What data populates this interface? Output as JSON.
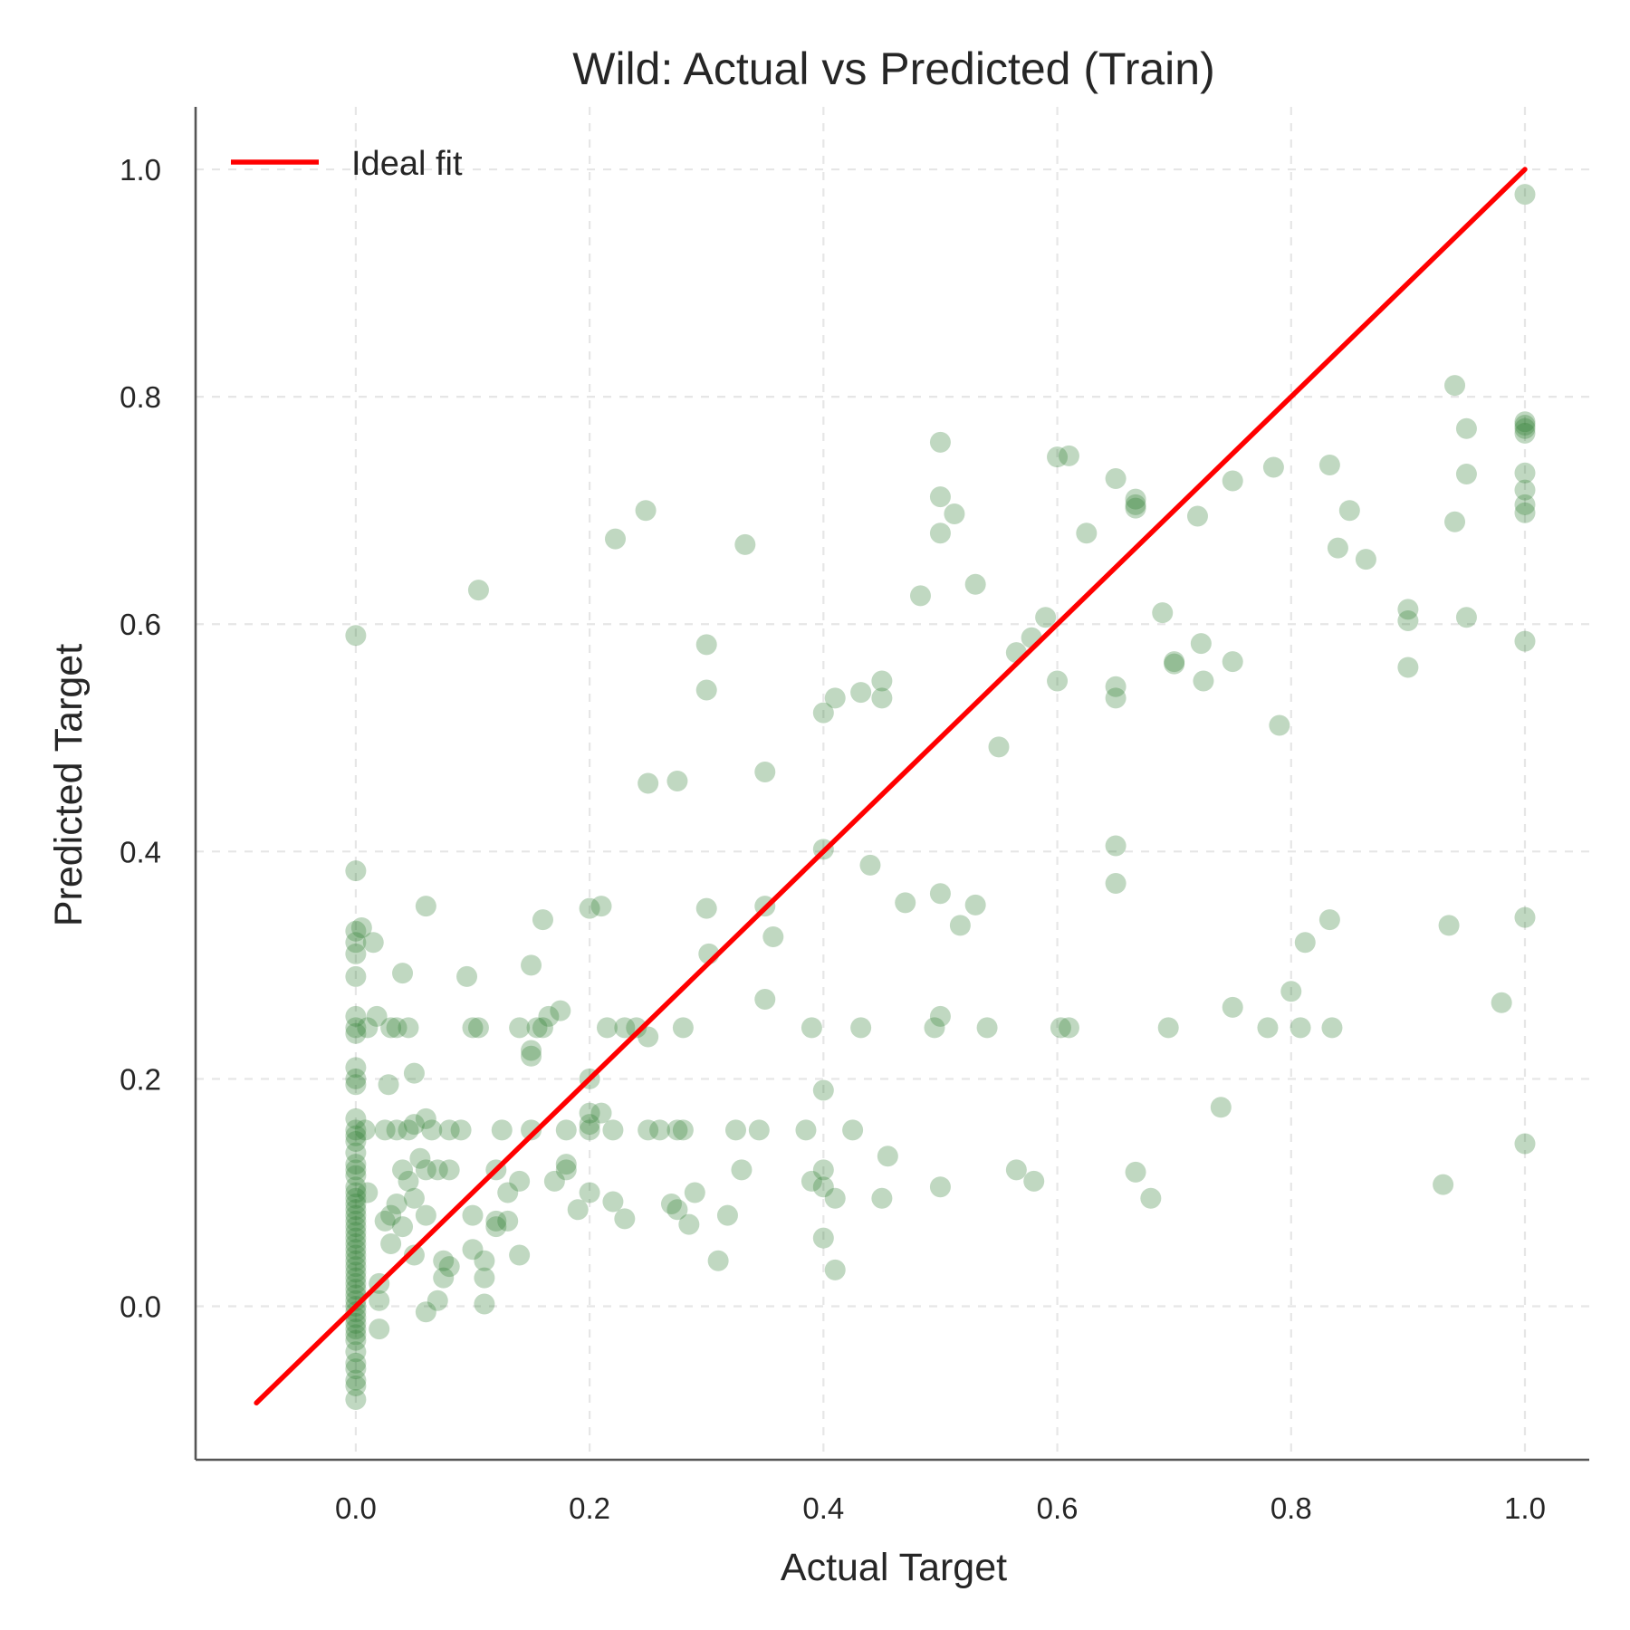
{
  "chart_data": {
    "type": "scatter",
    "title": "Wild: Actual vs Predicted (Train)",
    "xlabel": "Actual Target",
    "ylabel": "Predicted Target",
    "xlim": [
      -0.137,
      1.055
    ],
    "ylim": [
      -0.135,
      1.055
    ],
    "xticks": [
      0.0,
      0.2,
      0.4,
      0.6,
      0.8,
      1.0
    ],
    "yticks": [
      0.0,
      0.2,
      0.4,
      0.6,
      0.8,
      1.0
    ],
    "xtick_labels": [
      "0.0",
      "0.2",
      "0.4",
      "0.6",
      "0.8",
      "1.0"
    ],
    "ytick_labels": [
      "0.0",
      "0.2",
      "0.4",
      "0.6",
      "0.8",
      "1.0"
    ],
    "grid": true,
    "legend": {
      "placement": "top-left",
      "entries": [
        "Ideal fit"
      ]
    },
    "colors": {
      "points": "#2e7d32",
      "ideal_line": "#ff0000"
    },
    "point_alpha": 0.3,
    "ideal_line": {
      "from": [
        -0.085,
        -0.085
      ],
      "to": [
        1.0,
        1.0
      ]
    },
    "series": [
      {
        "points": [
          [
            0.0,
            0.59
          ],
          [
            0.0,
            0.383
          ],
          [
            0.0,
            0.33
          ],
          [
            0.0,
            0.32
          ],
          [
            0.0,
            0.31
          ],
          [
            0.0,
            0.29
          ],
          [
            0.0,
            0.255
          ],
          [
            0.0,
            0.245
          ],
          [
            0.0,
            0.24
          ],
          [
            0.0,
            0.21
          ],
          [
            0.0,
            0.2
          ],
          [
            0.0,
            0.195
          ],
          [
            0.0,
            0.165
          ],
          [
            0.0,
            0.155
          ],
          [
            0.0,
            0.15
          ],
          [
            0.0,
            0.145
          ],
          [
            0.0,
            0.135
          ],
          [
            0.0,
            0.125
          ],
          [
            0.0,
            0.12
          ],
          [
            0.0,
            0.115
          ],
          [
            0.0,
            0.105
          ],
          [
            0.0,
            0.1
          ],
          [
            0.0,
            0.095
          ],
          [
            0.0,
            0.09
          ],
          [
            0.0,
            0.085
          ],
          [
            0.0,
            0.08
          ],
          [
            0.0,
            0.075
          ],
          [
            0.0,
            0.07
          ],
          [
            0.0,
            0.065
          ],
          [
            0.0,
            0.06
          ],
          [
            0.0,
            0.055
          ],
          [
            0.0,
            0.05
          ],
          [
            0.0,
            0.045
          ],
          [
            0.0,
            0.04
          ],
          [
            0.0,
            0.035
          ],
          [
            0.0,
            0.03
          ],
          [
            0.0,
            0.025
          ],
          [
            0.0,
            0.02
          ],
          [
            0.0,
            0.015
          ],
          [
            0.0,
            0.01
          ],
          [
            0.0,
            0.005
          ],
          [
            0.0,
            0.0
          ],
          [
            0.0,
            -0.005
          ],
          [
            0.0,
            -0.01
          ],
          [
            0.0,
            -0.015
          ],
          [
            0.0,
            -0.02
          ],
          [
            0.0,
            -0.025
          ],
          [
            0.0,
            -0.03
          ],
          [
            0.0,
            -0.04
          ],
          [
            0.0,
            -0.05
          ],
          [
            0.0,
            -0.055
          ],
          [
            0.0,
            -0.065
          ],
          [
            0.0,
            -0.07
          ],
          [
            0.0,
            -0.082
          ],
          [
            0.005,
            0.333
          ],
          [
            0.008,
            0.155
          ],
          [
            0.01,
            0.1
          ],
          [
            0.01,
            0.245
          ],
          [
            0.015,
            0.32
          ],
          [
            0.018,
            0.255
          ],
          [
            0.02,
            0.02
          ],
          [
            0.02,
            0.005
          ],
          [
            0.02,
            -0.02
          ],
          [
            0.025,
            0.155
          ],
          [
            0.025,
            0.075
          ],
          [
            0.028,
            0.195
          ],
          [
            0.03,
            0.245
          ],
          [
            0.03,
            0.08
          ],
          [
            0.03,
            0.055
          ],
          [
            0.035,
            0.245
          ],
          [
            0.035,
            0.155
          ],
          [
            0.035,
            0.09
          ],
          [
            0.04,
            0.293
          ],
          [
            0.04,
            0.12
          ],
          [
            0.04,
            0.07
          ],
          [
            0.045,
            0.245
          ],
          [
            0.045,
            0.155
          ],
          [
            0.045,
            0.11
          ],
          [
            0.05,
            0.205
          ],
          [
            0.05,
            0.16
          ],
          [
            0.05,
            0.095
          ],
          [
            0.05,
            0.045
          ],
          [
            0.055,
            0.13
          ],
          [
            0.06,
            0.352
          ],
          [
            0.06,
            0.165
          ],
          [
            0.06,
            0.12
          ],
          [
            0.06,
            0.08
          ],
          [
            0.06,
            -0.005
          ],
          [
            0.065,
            0.155
          ],
          [
            0.07,
            0.005
          ],
          [
            0.07,
            0.12
          ],
          [
            0.075,
            0.04
          ],
          [
            0.075,
            0.025
          ],
          [
            0.08,
            0.155
          ],
          [
            0.08,
            0.12
          ],
          [
            0.08,
            0.035
          ],
          [
            0.09,
            0.155
          ],
          [
            0.095,
            0.29
          ],
          [
            0.1,
            0.245
          ],
          [
            0.1,
            0.08
          ],
          [
            0.1,
            0.05
          ],
          [
            0.105,
            0.63
          ],
          [
            0.105,
            0.245
          ],
          [
            0.11,
            0.04
          ],
          [
            0.11,
            0.025
          ],
          [
            0.11,
            0.002
          ],
          [
            0.12,
            0.12
          ],
          [
            0.12,
            0.075
          ],
          [
            0.12,
            0.07
          ],
          [
            0.125,
            0.155
          ],
          [
            0.13,
            0.1
          ],
          [
            0.13,
            0.075
          ],
          [
            0.14,
            0.245
          ],
          [
            0.14,
            0.11
          ],
          [
            0.14,
            0.045
          ],
          [
            0.15,
            0.3
          ],
          [
            0.15,
            0.225
          ],
          [
            0.15,
            0.22
          ],
          [
            0.15,
            0.155
          ],
          [
            0.155,
            0.245
          ],
          [
            0.16,
            0.34
          ],
          [
            0.16,
            0.245
          ],
          [
            0.165,
            0.255
          ],
          [
            0.17,
            0.11
          ],
          [
            0.175,
            0.26
          ],
          [
            0.18,
            0.125
          ],
          [
            0.18,
            0.12
          ],
          [
            0.18,
            0.155
          ],
          [
            0.19,
            0.085
          ],
          [
            0.2,
            0.35
          ],
          [
            0.2,
            0.2
          ],
          [
            0.2,
            0.17
          ],
          [
            0.2,
            0.16
          ],
          [
            0.2,
            0.155
          ],
          [
            0.2,
            0.1
          ],
          [
            0.21,
            0.352
          ],
          [
            0.21,
            0.17
          ],
          [
            0.215,
            0.245
          ],
          [
            0.22,
            0.155
          ],
          [
            0.22,
            0.092
          ],
          [
            0.222,
            0.675
          ],
          [
            0.23,
            0.245
          ],
          [
            0.23,
            0.077
          ],
          [
            0.24,
            0.245
          ],
          [
            0.248,
            0.7
          ],
          [
            0.25,
            0.237
          ],
          [
            0.25,
            0.46
          ],
          [
            0.25,
            0.155
          ],
          [
            0.26,
            0.155
          ],
          [
            0.27,
            0.09
          ],
          [
            0.275,
            0.462
          ],
          [
            0.275,
            0.155
          ],
          [
            0.275,
            0.085
          ],
          [
            0.28,
            0.245
          ],
          [
            0.28,
            0.155
          ],
          [
            0.285,
            0.072
          ],
          [
            0.29,
            0.1
          ],
          [
            0.3,
            0.582
          ],
          [
            0.3,
            0.542
          ],
          [
            0.3,
            0.35
          ],
          [
            0.302,
            0.31
          ],
          [
            0.31,
            0.04
          ],
          [
            0.318,
            0.08
          ],
          [
            0.325,
            0.155
          ],
          [
            0.33,
            0.12
          ],
          [
            0.333,
            0.67
          ],
          [
            0.345,
            0.155
          ],
          [
            0.35,
            0.47
          ],
          [
            0.35,
            0.352
          ],
          [
            0.35,
            0.27
          ],
          [
            0.357,
            0.325
          ],
          [
            0.385,
            0.155
          ],
          [
            0.39,
            0.245
          ],
          [
            0.39,
            0.11
          ],
          [
            0.4,
            0.522
          ],
          [
            0.4,
            0.402
          ],
          [
            0.4,
            0.19
          ],
          [
            0.4,
            0.12
          ],
          [
            0.4,
            0.105
          ],
          [
            0.4,
            0.06
          ],
          [
            0.41,
            0.535
          ],
          [
            0.41,
            0.095
          ],
          [
            0.41,
            0.032
          ],
          [
            0.425,
            0.155
          ],
          [
            0.432,
            0.54
          ],
          [
            0.432,
            0.245
          ],
          [
            0.44,
            0.388
          ],
          [
            0.45,
            0.55
          ],
          [
            0.45,
            0.535
          ],
          [
            0.45,
            0.095
          ],
          [
            0.455,
            0.132
          ],
          [
            0.47,
            0.355
          ],
          [
            0.483,
            0.625
          ],
          [
            0.495,
            0.245
          ],
          [
            0.5,
            0.76
          ],
          [
            0.5,
            0.712
          ],
          [
            0.5,
            0.68
          ],
          [
            0.5,
            0.363
          ],
          [
            0.5,
            0.255
          ],
          [
            0.5,
            0.105
          ],
          [
            0.512,
            0.697
          ],
          [
            0.517,
            0.335
          ],
          [
            0.53,
            0.635
          ],
          [
            0.53,
            0.353
          ],
          [
            0.54,
            0.245
          ],
          [
            0.55,
            0.492
          ],
          [
            0.565,
            0.575
          ],
          [
            0.565,
            0.12
          ],
          [
            0.578,
            0.588
          ],
          [
            0.58,
            0.11
          ],
          [
            0.59,
            0.606
          ],
          [
            0.6,
            0.747
          ],
          [
            0.6,
            0.55
          ],
          [
            0.603,
            0.245
          ],
          [
            0.61,
            0.748
          ],
          [
            0.61,
            0.245
          ],
          [
            0.625,
            0.68
          ],
          [
            0.65,
            0.728
          ],
          [
            0.65,
            0.545
          ],
          [
            0.65,
            0.535
          ],
          [
            0.65,
            0.405
          ],
          [
            0.65,
            0.372
          ],
          [
            0.667,
            0.71
          ],
          [
            0.667,
            0.705
          ],
          [
            0.667,
            0.702
          ],
          [
            0.667,
            0.118
          ],
          [
            0.68,
            0.095
          ],
          [
            0.69,
            0.61
          ],
          [
            0.695,
            0.245
          ],
          [
            0.7,
            0.567
          ],
          [
            0.7,
            0.565
          ],
          [
            0.72,
            0.695
          ],
          [
            0.723,
            0.583
          ],
          [
            0.725,
            0.55
          ],
          [
            0.74,
            0.175
          ],
          [
            0.75,
            0.726
          ],
          [
            0.75,
            0.567
          ],
          [
            0.75,
            0.263
          ],
          [
            0.78,
            0.245
          ],
          [
            0.785,
            0.738
          ],
          [
            0.79,
            0.511
          ],
          [
            0.8,
            0.277
          ],
          [
            0.808,
            0.245
          ],
          [
            0.812,
            0.32
          ],
          [
            0.833,
            0.74
          ],
          [
            0.833,
            0.34
          ],
          [
            0.835,
            0.245
          ],
          [
            0.84,
            0.667
          ],
          [
            0.85,
            0.7
          ],
          [
            0.864,
            0.657
          ],
          [
            0.9,
            0.613
          ],
          [
            0.9,
            0.603
          ],
          [
            0.9,
            0.562
          ],
          [
            0.93,
            0.107
          ],
          [
            0.935,
            0.335
          ],
          [
            0.94,
            0.69
          ],
          [
            0.94,
            0.81
          ],
          [
            0.95,
            0.772
          ],
          [
            0.95,
            0.732
          ],
          [
            0.95,
            0.606
          ],
          [
            0.98,
            0.267
          ],
          [
            1.0,
            0.978
          ],
          [
            1.0,
            0.778
          ],
          [
            1.0,
            0.775
          ],
          [
            1.0,
            0.772
          ],
          [
            1.0,
            0.768
          ],
          [
            1.0,
            0.733
          ],
          [
            1.0,
            0.718
          ],
          [
            1.0,
            0.705
          ],
          [
            1.0,
            0.698
          ],
          [
            1.0,
            0.585
          ],
          [
            1.0,
            0.342
          ],
          [
            1.0,
            0.143
          ]
        ]
      }
    ]
  }
}
